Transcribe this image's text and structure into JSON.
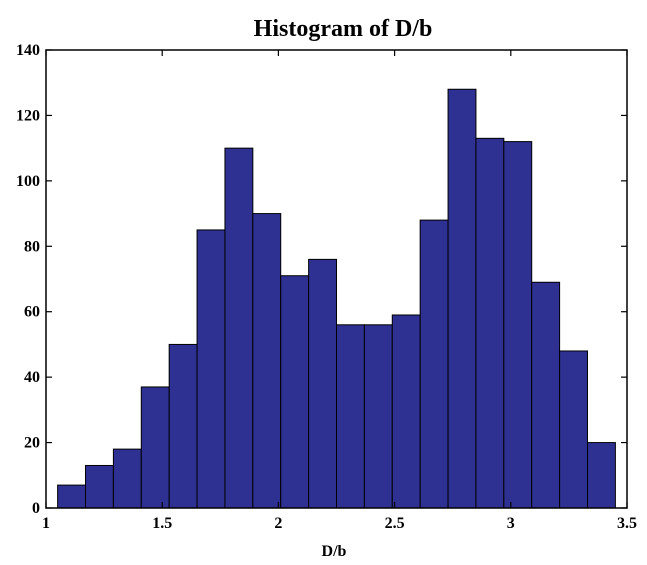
{
  "chart_data": {
    "type": "bar",
    "title": "Histogram of D/b",
    "xlabel": "D/b",
    "ylabel": "",
    "xlim": [
      1,
      3.5
    ],
    "ylim": [
      0,
      140
    ],
    "xticks": [
      "1",
      "1.5",
      "2",
      "2.5",
      "3",
      "3.5"
    ],
    "yticks": [
      "0",
      "20",
      "40",
      "60",
      "80",
      "100",
      "120",
      "140"
    ],
    "grid": false,
    "bar_color": "#2e3192",
    "edge_color": "#000000",
    "bins": [
      {
        "x0": 1.05,
        "x1": 1.17,
        "value": 7
      },
      {
        "x0": 1.17,
        "x1": 1.29,
        "value": 13
      },
      {
        "x0": 1.29,
        "x1": 1.41,
        "value": 18
      },
      {
        "x0": 1.41,
        "x1": 1.53,
        "value": 37
      },
      {
        "x0": 1.53,
        "x1": 1.65,
        "value": 50
      },
      {
        "x0": 1.65,
        "x1": 1.77,
        "value": 85
      },
      {
        "x0": 1.77,
        "x1": 1.89,
        "value": 110
      },
      {
        "x0": 1.89,
        "x1": 2.01,
        "value": 90
      },
      {
        "x0": 2.01,
        "x1": 2.13,
        "value": 71
      },
      {
        "x0": 2.13,
        "x1": 2.25,
        "value": 76
      },
      {
        "x0": 2.25,
        "x1": 2.37,
        "value": 56
      },
      {
        "x0": 2.37,
        "x1": 2.49,
        "value": 56
      },
      {
        "x0": 2.49,
        "x1": 2.61,
        "value": 59
      },
      {
        "x0": 2.61,
        "x1": 2.73,
        "value": 88
      },
      {
        "x0": 2.73,
        "x1": 2.85,
        "value": 128
      },
      {
        "x0": 2.85,
        "x1": 2.97,
        "value": 113
      },
      {
        "x0": 2.97,
        "x1": 3.09,
        "value": 112
      },
      {
        "x0": 3.09,
        "x1": 3.21,
        "value": 69
      },
      {
        "x0": 3.21,
        "x1": 3.33,
        "value": 48
      },
      {
        "x0": 3.33,
        "x1": 3.45,
        "value": 20
      }
    ]
  }
}
